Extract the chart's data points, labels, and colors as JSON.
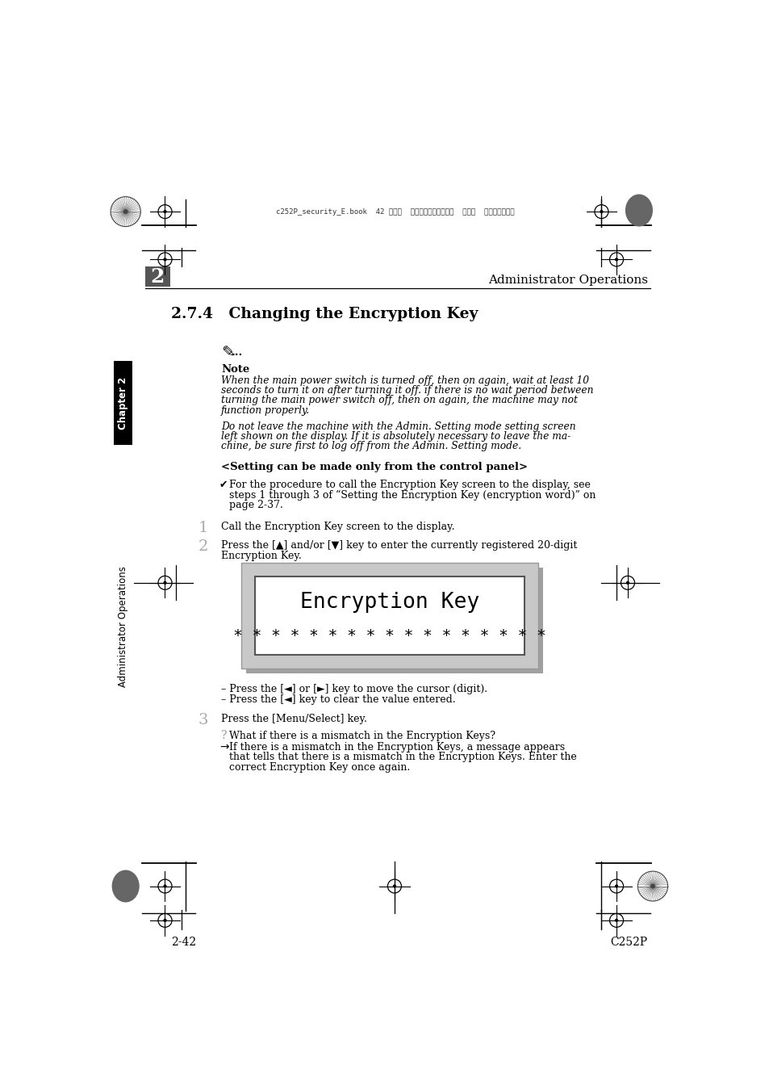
{
  "bg_color": "#ffffff",
  "header_text": "Administrator Operations",
  "chapter_num": "2",
  "section_title": "2.7.4   Changing the Encryption Key",
  "note_label": "Note",
  "note_italic1_lines": [
    "When the main power switch is turned off, then on again, wait at least 10",
    "seconds to turn it on after turning it off. if there is no wait period between",
    "turning the main power switch off, then on again, the machine may not",
    "function properly."
  ],
  "note_italic2_lines": [
    "Do not leave the machine with the Admin. Setting mode setting screen",
    "left shown on the display. If it is absolutely necessary to leave the ma-",
    "chine, be sure first to log off from the Admin. Setting mode."
  ],
  "setting_header": "<Setting can be made only from the control panel>",
  "checkmark_lines": [
    "For the procedure to call the Encryption Key screen to the display, see",
    "steps 1 through 3 of “Setting the Encryption Key (encryption word)” on",
    "page 2-37."
  ],
  "step1_text": "Call the Encryption Key screen to the display.",
  "step2_lines": [
    "Press the [▲] and/or [▼] key to enter the currently registered 20-digit",
    "Encryption Key."
  ],
  "lcd_line1": "Encryption Key",
  "lcd_line2": "* * * * * * * * * * * * * * * * *",
  "bullet1": "Press the [◄] or [►] key to move the cursor (digit).",
  "bullet2": "Press the [◄] key to clear the value entered.",
  "step3_text": "Press the [Menu/Select] key.",
  "question_text": "What if there is a mismatch in the Encryption Keys?",
  "arrow_lines": [
    "If there is a mismatch in the Encryption Keys, a message appears",
    "that tells that there is a mismatch in the Encryption Keys. Enter the",
    "correct Encryption Key once again."
  ],
  "footer_left": "2-42",
  "footer_right": "C252P",
  "sidebar_ch": "Chapter 2",
  "sidebar_ao": "Administrator Operations",
  "header_file": "c252P_security_E.book  42 ページ  ２００７年４月１０日  火曜日  午後７晎４６分"
}
